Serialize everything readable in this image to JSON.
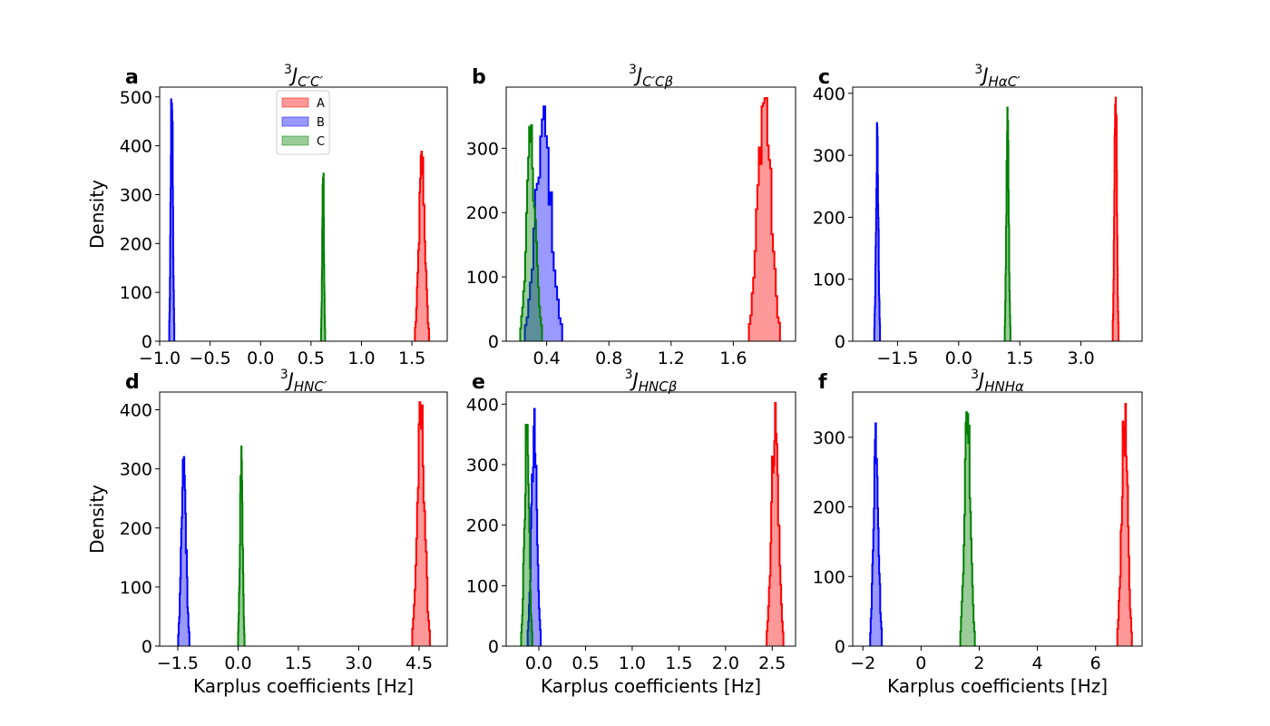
{
  "figure": {
    "xlabel_common": "Karplus coefficients [Hz]",
    "ylabel_common": "Density",
    "legend": [
      {
        "label": "A",
        "color": "#ff0000"
      },
      {
        "label": "B",
        "color": "#0000ff"
      },
      {
        "label": "C",
        "color": "#008000"
      }
    ]
  },
  "chart_data": [
    {
      "type": "histogram",
      "panel_letter": "a",
      "title": {
        "base": "3",
        "main": "J",
        "sub": "C′C′"
      },
      "xlabel": "",
      "ylabel": "Density",
      "xlim": [
        -1.0,
        1.85
      ],
      "ylim": [
        0,
        520
      ],
      "xticks": [
        -1.0,
        -0.5,
        0.0,
        0.5,
        1.0,
        1.5
      ],
      "xtick_labels": [
        "−1.0",
        "−0.5",
        "0.0",
        "0.5",
        "1.0",
        "1.5"
      ],
      "yticks": [
        0,
        100,
        200,
        300,
        400,
        500
      ],
      "series": [
        {
          "name": "A",
          "color": "#ff0000",
          "center": 1.6,
          "peak": 388,
          "halfwidth": 0.07
        },
        {
          "name": "B",
          "color": "#0000ff",
          "center": -0.88,
          "peak": 495,
          "halfwidth": 0.025
        },
        {
          "name": "C",
          "color": "#008000",
          "center": 0.62,
          "peak": 343,
          "halfwidth": 0.02
        }
      ]
    },
    {
      "type": "histogram",
      "panel_letter": "b",
      "title": {
        "base": "3",
        "main": "J",
        "sub": "C′Cβ"
      },
      "xlabel": "",
      "ylabel": "",
      "xlim": [
        0.14,
        2.0
      ],
      "ylim": [
        0,
        395
      ],
      "xticks": [
        0.4,
        0.8,
        1.2,
        1.6
      ],
      "xtick_labels": [
        "0.4",
        "0.8",
        "1.2",
        "1.6"
      ],
      "yticks": [
        0,
        100,
        200,
        300
      ],
      "series": [
        {
          "name": "A",
          "color": "#ff0000",
          "center": 1.8,
          "peak": 378,
          "halfwidth": 0.1
        },
        {
          "name": "B",
          "color": "#0000ff",
          "center": 0.38,
          "peak": 365,
          "halfwidth": 0.12
        },
        {
          "name": "C",
          "color": "#008000",
          "center": 0.3,
          "peak": 336,
          "halfwidth": 0.07
        }
      ]
    },
    {
      "type": "histogram",
      "panel_letter": "c",
      "title": {
        "base": "3",
        "main": "J",
        "sub": "HαC′"
      },
      "xlabel": "",
      "ylabel": "",
      "xlim": [
        -2.6,
        4.5
      ],
      "ylim": [
        0,
        410
      ],
      "xticks": [
        -1.5,
        0.0,
        1.5,
        3.0
      ],
      "xtick_labels": [
        "−1.5",
        "0.0",
        "1.5",
        "3.0"
      ],
      "yticks": [
        0,
        100,
        200,
        300,
        400
      ],
      "series": [
        {
          "name": "A",
          "color": "#ff0000",
          "center": 3.85,
          "peak": 393,
          "halfwidth": 0.07
        },
        {
          "name": "B",
          "color": "#0000ff",
          "center": -2.0,
          "peak": 352,
          "halfwidth": 0.07
        },
        {
          "name": "C",
          "color": "#008000",
          "center": 1.2,
          "peak": 377,
          "halfwidth": 0.07
        }
      ]
    },
    {
      "type": "histogram",
      "panel_letter": "d",
      "title": {
        "base": "3",
        "main": "J",
        "sub": "HNC′"
      },
      "xlabel": "Karplus coefficients [Hz]",
      "ylabel": "Density",
      "xlim": [
        -1.95,
        5.2
      ],
      "ylim": [
        0,
        430
      ],
      "xticks": [
        -1.5,
        0.0,
        1.5,
        3.0,
        4.5
      ],
      "xtick_labels": [
        "−1.5",
        "0.0",
        "1.5",
        "3.0",
        "4.5"
      ],
      "yticks": [
        0,
        100,
        200,
        300,
        400
      ],
      "series": [
        {
          "name": "A",
          "color": "#ff0000",
          "center": 4.55,
          "peak": 413,
          "halfwidth": 0.22
        },
        {
          "name": "B",
          "color": "#0000ff",
          "center": -1.35,
          "peak": 320,
          "halfwidth": 0.14
        },
        {
          "name": "C",
          "color": "#008000",
          "center": 0.08,
          "peak": 338,
          "halfwidth": 0.08
        }
      ]
    },
    {
      "type": "histogram",
      "panel_letter": "e",
      "title": {
        "base": "3",
        "main": "J",
        "sub": "HNCβ"
      },
      "xlabel": "Karplus coefficients [Hz]",
      "ylabel": "",
      "xlim": [
        -0.35,
        2.75
      ],
      "ylim": [
        0,
        420
      ],
      "xticks": [
        0.0,
        0.5,
        1.0,
        1.5,
        2.0,
        2.5
      ],
      "xtick_labels": [
        "0.0",
        "0.5",
        "1.0",
        "1.5",
        "2.0",
        "2.5"
      ],
      "yticks": [
        0,
        100,
        200,
        300,
        400
      ],
      "series": [
        {
          "name": "A",
          "color": "#ff0000",
          "center": 2.53,
          "peak": 402,
          "halfwidth": 0.09
        },
        {
          "name": "B",
          "color": "#0000ff",
          "center": -0.05,
          "peak": 392,
          "halfwidth": 0.07
        },
        {
          "name": "C",
          "color": "#008000",
          "center": -0.13,
          "peak": 366,
          "halfwidth": 0.06
        }
      ]
    },
    {
      "type": "histogram",
      "panel_letter": "f",
      "title": {
        "base": "3",
        "main": "J",
        "sub": "HNHα"
      },
      "xlabel": "Karplus coefficients [Hz]",
      "ylabel": "",
      "xlim": [
        -2.35,
        7.6
      ],
      "ylim": [
        0,
        365
      ],
      "xticks": [
        -2,
        0,
        2,
        4,
        6
      ],
      "xtick_labels": [
        "−2",
        "0",
        "2",
        "4",
        "6"
      ],
      "yticks": [
        0,
        100,
        200,
        300
      ],
      "series": [
        {
          "name": "A",
          "color": "#ff0000",
          "center": 7.0,
          "peak": 348,
          "halfwidth": 0.25
        },
        {
          "name": "B",
          "color": "#0000ff",
          "center": -1.55,
          "peak": 320,
          "halfwidth": 0.2
        },
        {
          "name": "C",
          "color": "#008000",
          "center": 1.6,
          "peak": 336,
          "halfwidth": 0.25
        }
      ]
    }
  ]
}
